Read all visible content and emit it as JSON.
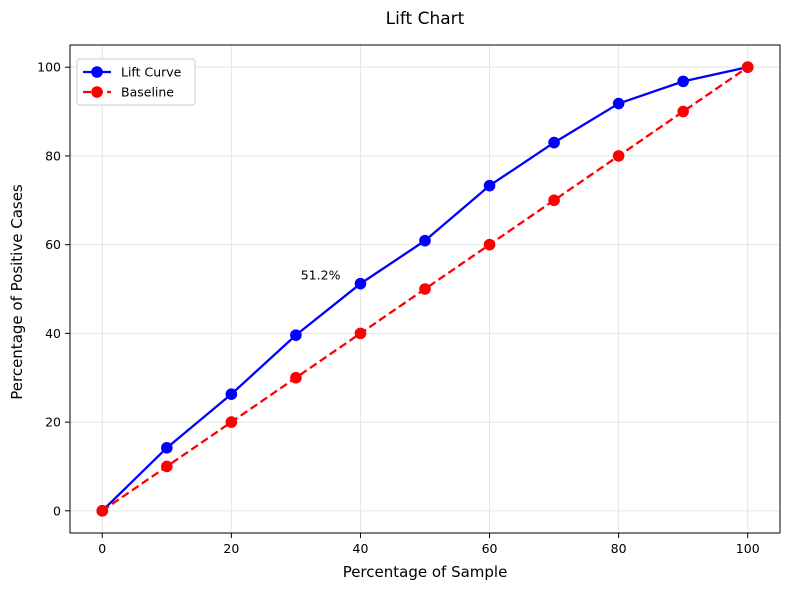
{
  "chart_data": {
    "type": "line",
    "title": "Lift Chart",
    "xlabel": "Percentage of Sample",
    "ylabel": "Percentage of Positive Cases",
    "xlim": [
      -5,
      105
    ],
    "ylim": [
      -5,
      105
    ],
    "xticks": [
      0,
      20,
      40,
      60,
      80,
      100
    ],
    "yticks": [
      0,
      20,
      40,
      60,
      80,
      100
    ],
    "grid": true,
    "legend_position": "top-left",
    "x": [
      0,
      10,
      20,
      30,
      40,
      50,
      60,
      70,
      80,
      90,
      100
    ],
    "series": [
      {
        "name": "Lift Curve",
        "color": "#0000ff",
        "linestyle": "solid",
        "marker": "circle",
        "values": [
          0,
          14.2,
          26.3,
          39.6,
          51.2,
          60.9,
          73.3,
          83.0,
          91.8,
          96.8,
          100
        ]
      },
      {
        "name": "Baseline",
        "color": "#ff0000",
        "linestyle": "dashed",
        "marker": "circle",
        "values": [
          0,
          10,
          20,
          30,
          40,
          50,
          60,
          70,
          80,
          90,
          100
        ]
      }
    ],
    "annotations": [
      {
        "text": "51.2%",
        "x": 40,
        "y": 51.2
      }
    ]
  }
}
